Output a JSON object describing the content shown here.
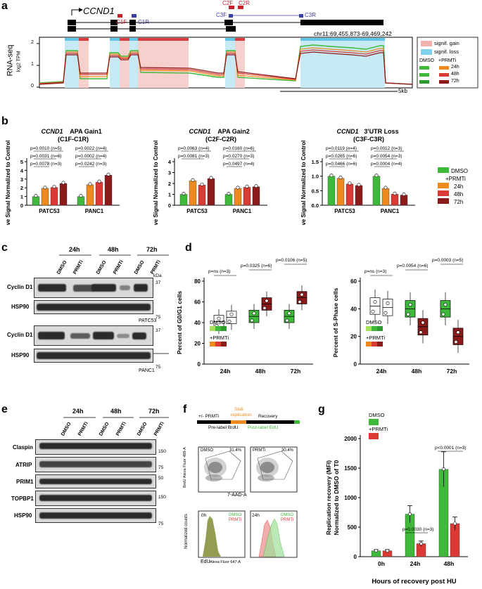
{
  "colors": {
    "dmso": "#3fb93a",
    "h24": "#ef8a1f",
    "h48": "#d93a34",
    "h72": "#8b1a1a",
    "gain": "#f3b3ad",
    "loss": "#7fd0ea",
    "sig_gain_fill": "#f6d0cc",
    "sig_loss_fill": "#c7e9f4"
  },
  "panel_a": {
    "letter": "a",
    "gene": "CCND1",
    "primers": [
      "C1F",
      "C1R",
      "C2F",
      "C2R",
      "C3F",
      "C3R"
    ],
    "coords": "chr11:69,455,873-69,469,242",
    "ylabel": "RNA-seq",
    "ylabel_sub": "log2 TPM",
    "yticks": [
      "2",
      "1",
      "0"
    ],
    "scale": "5kb",
    "legend": {
      "gain": "signif. gain",
      "loss": "signif. loss",
      "dmso": "DMSO",
      "prmti": "+PRMTi",
      "h24": "24h",
      "h48": "48h",
      "h72": "72h"
    }
  },
  "panel_b": {
    "letter": "b",
    "ylabel": "Relative Signal Normalized to Control",
    "chart_data": [
      {
        "type": "bar",
        "title_gene": "CCND1",
        "title": "APA Gain1",
        "subtitle": "(C1F-C1R)",
        "categories": [
          "PATC53",
          "PANC1"
        ],
        "series": [
          {
            "name": "DMSO",
            "values": [
              1.0,
              1.0
            ]
          },
          {
            "name": "24h",
            "values": [
              1.95,
              2.35
            ]
          },
          {
            "name": "48h",
            "values": [
              2.05,
              2.65
            ]
          },
          {
            "name": "72h",
            "values": [
              2.5,
              3.45
            ]
          }
        ],
        "ylim": [
          0,
          5
        ],
        "yticks": [
          "0",
          "1",
          "2",
          "3",
          "4",
          "5"
        ],
        "pvals": [
          [
            "p=0.0010 (n=5)",
            "p=0.0031 (n=6)",
            "p=0.0078 (n=3)"
          ],
          [
            "p=0.0022 (n=4)",
            "p=0.0002 (n=4)",
            "p=0.0242 (n=3)"
          ]
        ]
      },
      {
        "type": "bar",
        "title_gene": "CCND1",
        "title": "APA Gain2",
        "subtitle": "(C2F-C2R)",
        "categories": [
          "PATC53",
          "PANC1"
        ],
        "series": [
          {
            "name": "DMSO",
            "values": [
              1.0,
              1.0
            ]
          },
          {
            "name": "24h",
            "values": [
              2.25,
              1.55
            ]
          },
          {
            "name": "48h",
            "values": [
              1.85,
              1.65
            ]
          },
          {
            "name": "72h",
            "values": [
              2.45,
              1.7
            ]
          }
        ],
        "ylim": [
          0,
          4
        ],
        "yticks": [
          "0",
          "1",
          "2",
          "3",
          "4"
        ],
        "pvals": [
          [
            "p=0.0063 (n=4)",
            "p=0.0081 (n=3)"
          ],
          [
            "p=0.0160 (n=6)",
            "p=0.0270 (n=3)",
            "p=0.0497 (n=4)"
          ]
        ]
      },
      {
        "type": "bar",
        "title_gene": "CCND1",
        "title": "3'UTR Loss",
        "subtitle": "(C3F-C3R)",
        "categories": [
          "PATC53",
          "PANC1"
        ],
        "series": [
          {
            "name": "DMSO",
            "values": [
              1.0,
              1.0
            ]
          },
          {
            "name": "24h",
            "values": [
              0.93,
              0.58
            ]
          },
          {
            "name": "48h",
            "values": [
              0.73,
              0.38
            ]
          },
          {
            "name": "72h",
            "values": [
              0.68,
              0.35
            ]
          }
        ],
        "ylim": [
          0,
          1.5
        ],
        "yticks": [
          "0.0",
          "0.5",
          "1.0",
          "1.5"
        ],
        "pvals": [
          [
            "p=0.0119 (n=4)",
            "p=0.0265 (n=6)",
            "p=0.0466 (n=6)"
          ],
          [
            "p=0.0012 (n=3)",
            "p=0.0054 (n=3)",
            "p=0.0004 (n=4)"
          ]
        ]
      }
    ],
    "legend": {
      "dmso": "DMSO",
      "prmti": "+PRMTi",
      "h24": "24h",
      "h48": "48h",
      "h72": "72h"
    }
  },
  "panel_c": {
    "letter": "c",
    "timepoints": [
      "24h",
      "48h",
      "72h"
    ],
    "lanes": [
      "DMSO",
      "PRMTi",
      "DMSO",
      "PRMTi",
      "DMSO",
      "PRMTi"
    ],
    "kda": "kDa",
    "rows1": [
      "Cyclin D1",
      "HSP90"
    ],
    "rows2": [
      "Cyclin D1",
      "HSP90"
    ],
    "markers1": [
      "37",
      "75"
    ],
    "markers2": [
      "37",
      "75"
    ],
    "cell1": "PATC53",
    "cell2": "PANC1"
  },
  "panel_d": {
    "letter": "d",
    "chart_data": [
      {
        "type": "box",
        "ylabel": "Percent of G0/G1 cells",
        "categories": [
          "24h",
          "48h",
          "72h"
        ],
        "ylim": [
          0,
          80
        ],
        "yticks": [
          "0",
          "20",
          "40",
          "60",
          "80"
        ],
        "series": [
          {
            "name": "DMSO",
            "medians": [
              41,
              46,
              46
            ]
          },
          {
            "name": "PRMTi",
            "medians": [
              45,
              58,
              64
            ]
          }
        ],
        "pvals": [
          "p=ns (n=3)",
          "p=0.0325 (n=6)",
          "p=0.0106 (n=5)"
        ],
        "legend": {
          "dmso": "DMSO",
          "prmti": "+PRMTi"
        }
      },
      {
        "type": "box",
        "ylabel": "Percent of S-Phase cells",
        "categories": [
          "24h",
          "48h",
          "72h"
        ],
        "ylim": [
          0,
          60
        ],
        "yticks": [
          "0",
          "20",
          "40",
          "60"
        ],
        "series": [
          {
            "name": "DMSO",
            "medians": [
              42,
              40,
              40
            ]
          },
          {
            "name": "PRMTi",
            "medians": [
              41,
              27,
              20
            ]
          }
        ],
        "pvals": [
          "p=ns (n=3)",
          "p=0.0054 (n=6)",
          "p=0.0003 (n=5)"
        ],
        "legend": {
          "dmso": "DMSO",
          "prmti": "+PRMTi"
        }
      }
    ]
  },
  "panel_e": {
    "letter": "e",
    "timepoints": [
      "24h",
      "48h",
      "72h"
    ],
    "lanes": [
      "DMSO",
      "PRMTi",
      "DMSO",
      "PRMTi",
      "DMSO",
      "PRMTi"
    ],
    "rows": [
      "Claspin",
      "ATRIP",
      "PRIM1",
      "TOPBP1",
      "HSP90"
    ],
    "markers": [
      "150",
      "75",
      "50",
      "150",
      "75"
    ]
  },
  "panel_f": {
    "letter": "f",
    "timeline": {
      "prmti": "+/- PRMTi",
      "stall": "Stall",
      "replication": "replication",
      "recovery": "Recovery",
      "prelabel": "Pre-label BrdU",
      "postlabel": "Post-label EdU"
    },
    "dots": [
      {
        "label": "DMSO",
        "pct": "31.4%"
      },
      {
        "label": "PRMTi",
        "pct": "30.4%"
      }
    ],
    "dot_ylabel": "BrdU Alexa Fluor 488-A",
    "dot_xlabel": "7-AAD-A",
    "hist_ylabel": "Normalized counts",
    "hist_xlabel": "EdU",
    "hist_xlabel_sub": "Alexa Fluor 647-A",
    "hists": [
      {
        "time": "0h",
        "dmso": "DMSO",
        "prmti": "PRMTi"
      },
      {
        "time": "24h",
        "dmso": "DMSO",
        "prmti": "PRMTi"
      }
    ]
  },
  "panel_g": {
    "letter": "g",
    "chart_data": {
      "type": "bar",
      "ylabel": "Replication recovery (MFI)",
      "ylabel2": "Normalized to DMSO of T0",
      "xlabel": "Hours of recovery post HU",
      "categories": [
        "0h",
        "24h",
        "48h"
      ],
      "series": [
        {
          "name": "DMSO",
          "values": [
            100,
            720,
            1480
          ]
        },
        {
          "name": "+PRMTi",
          "values": [
            100,
            220,
            560
          ]
        }
      ],
      "ylim": [
        0,
        2000
      ],
      "yticks": [
        "0",
        "500",
        "1000",
        "1500",
        "2000"
      ],
      "pvals": [
        "p=0.0030 (n=3)",
        "p<0.0001 (n=3)"
      ],
      "legend": {
        "dmso": "DMSO",
        "prmti": "+PRMTi"
      }
    }
  }
}
